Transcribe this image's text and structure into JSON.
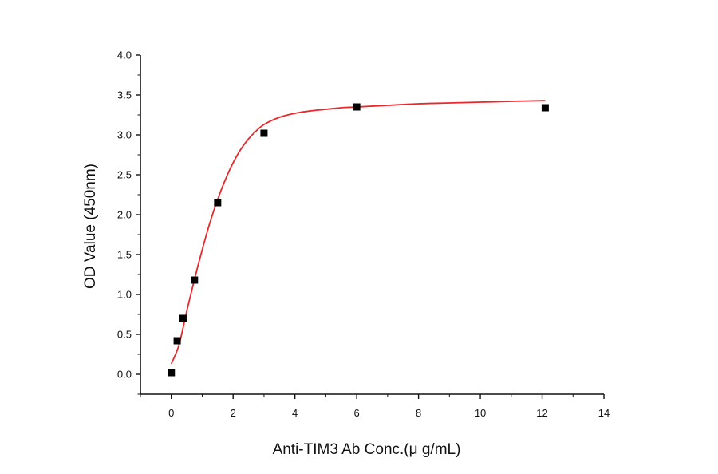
{
  "chart_data": {
    "type": "scatter",
    "title": "",
    "xlabel": "Anti-TIM3 Ab Conc.(μ g/mL)",
    "ylabel": "OD Value (450nm)",
    "xlim": [
      -1,
      14
    ],
    "ylim": [
      -0.25,
      4.0
    ],
    "xticks": [
      0,
      2,
      4,
      6,
      8,
      10,
      12,
      14
    ],
    "yticks": [
      0.0,
      0.5,
      1.0,
      1.5,
      2.0,
      2.5,
      3.0,
      3.5,
      4.0
    ],
    "xtick_labels": [
      "0",
      "2",
      "4",
      "6",
      "8",
      "10",
      "12",
      "14"
    ],
    "ytick_labels": [
      "0.0",
      "0.5",
      "1.0",
      "1.5",
      "2.0",
      "2.5",
      "3.0",
      "3.5",
      "4.0"
    ],
    "grid": false,
    "legend": "none",
    "series": [
      {
        "kind": "points",
        "marker": "square",
        "color": "#000000",
        "x": [
          0,
          0.19,
          0.38,
          0.75,
          1.5,
          3.0,
          6.0,
          12.1
        ],
        "y": [
          0.02,
          0.42,
          0.7,
          1.18,
          2.15,
          3.02,
          3.35,
          3.34
        ]
      },
      {
        "kind": "fit-curve",
        "color": "#e8282a",
        "x": [
          0,
          0.25,
          0.5,
          0.75,
          1,
          1.25,
          1.5,
          1.75,
          2,
          2.25,
          2.5,
          2.75,
          3,
          3.5,
          4,
          4.5,
          5,
          5.5,
          6,
          7,
          8,
          9,
          10,
          11,
          12.1
        ],
        "y": [
          0.13,
          0.37,
          0.79,
          1.19,
          1.56,
          1.9,
          2.19,
          2.44,
          2.65,
          2.82,
          2.95,
          3.05,
          3.13,
          3.22,
          3.27,
          3.3,
          3.32,
          3.34,
          3.35,
          3.37,
          3.39,
          3.4,
          3.41,
          3.42,
          3.43
        ]
      }
    ]
  }
}
